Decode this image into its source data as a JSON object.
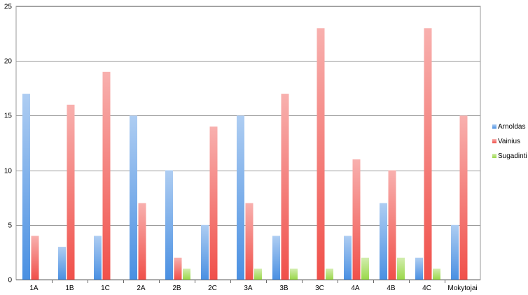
{
  "chart_data": {
    "type": "bar",
    "title": "",
    "xlabel": "",
    "ylabel": "",
    "ylim": [
      0,
      25
    ],
    "yticks": [
      0,
      5,
      10,
      15,
      20,
      25
    ],
    "grid": true,
    "legend_position": "right",
    "categories": [
      "1A",
      "1B",
      "1C",
      "2A",
      "2B",
      "2C",
      "3A",
      "3B",
      "3C",
      "4A",
      "4B",
      "4C",
      "Mokytojai"
    ],
    "series": [
      {
        "name": "Arnoldas",
        "color": "#4a90e2",
        "values": [
          17,
          3,
          4,
          15,
          10,
          5,
          15,
          4,
          0,
          4,
          7,
          2,
          5
        ]
      },
      {
        "name": "Vainius",
        "color": "#f0504a",
        "values": [
          4,
          16,
          19,
          7,
          2,
          14,
          7,
          17,
          23,
          11,
          10,
          23,
          15
        ]
      },
      {
        "name": "Sugadinti",
        "color": "#9ad84a",
        "values": [
          0,
          0,
          0,
          0,
          1,
          0,
          1,
          1,
          1,
          2,
          2,
          1,
          0
        ]
      }
    ]
  }
}
